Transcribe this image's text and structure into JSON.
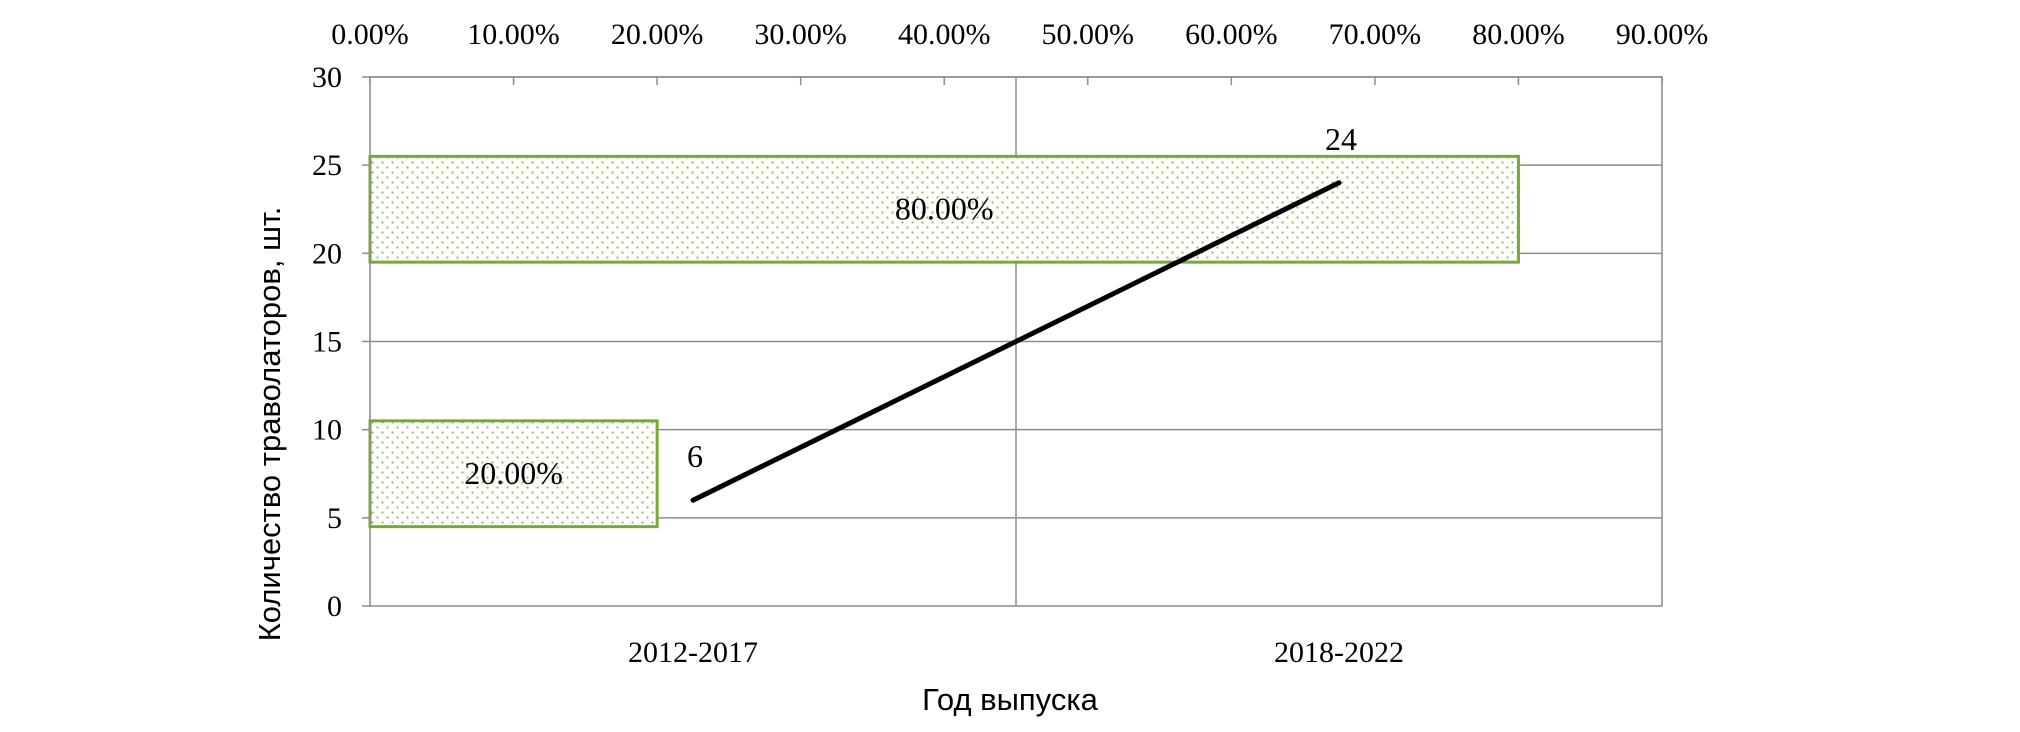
{
  "chart_data": {
    "type": "bar+line",
    "categories": [
      "2012-2017",
      "2018-2022"
    ],
    "xlabel": "Год выпуска",
    "ylabel": "Количество траволаторов, шт.",
    "ylim": [
      0,
      30
    ],
    "y_ticks": [
      "0",
      "5",
      "10",
      "15",
      "20",
      "25",
      "30"
    ],
    "top_axis": {
      "range": [
        0,
        90
      ],
      "ticks": [
        "0.00%",
        "10.00%",
        "20.00%",
        "30.00%",
        "40.00%",
        "50.00%",
        "60.00%",
        "70.00%",
        "80.00%",
        "90.00%"
      ]
    },
    "grid": true,
    "bars": {
      "orientation": "horizontal",
      "axis": "top",
      "values": [
        20,
        80
      ],
      "labels": [
        "20.00%",
        "80.00%"
      ],
      "y_center": [
        7.5,
        22.5
      ],
      "color": "#77aa33",
      "fill": "dotted"
    },
    "line": {
      "values": [
        6,
        24
      ],
      "labels": [
        "6",
        "24"
      ],
      "color": "#000000"
    }
  }
}
